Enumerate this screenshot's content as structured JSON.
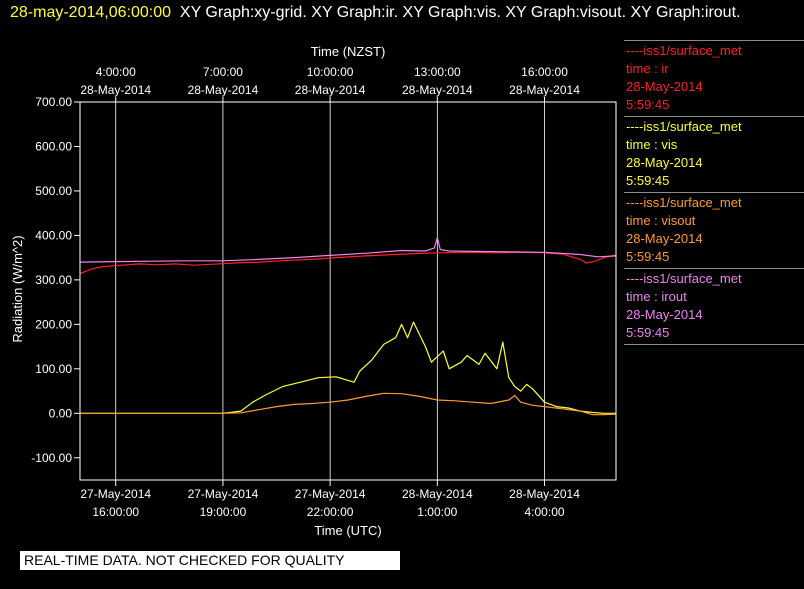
{
  "header": {
    "timestamp": "28-may-2014,06:00:00",
    "graphs": "XY Graph:xy-grid.  XY Graph:ir.  XY Graph:vis.  XY Graph:visout.  XY Graph:irout."
  },
  "legend": [
    {
      "name": "----iss1/surface_met",
      "field": "time : ir",
      "date": "28-May-2014",
      "time": "5:59:45",
      "color": "#ff2020"
    },
    {
      "name": "----iss1/surface_met",
      "field": "time : vis",
      "date": "28-May-2014",
      "time": "5:59:45",
      "color": "#ffff33"
    },
    {
      "name": "----iss1/surface_met",
      "field": "time : visout",
      "date": "28-May-2014",
      "time": "5:59:45",
      "color": "#ff9933"
    },
    {
      "name": "----iss1/surface_met",
      "field": "time : irout",
      "date": "28-May-2014",
      "time": "5:59:45",
      "color": "#ee82ee"
    }
  ],
  "disclaimer": "REAL-TIME DATA. NOT CHECKED FOR QUALITY",
  "chart_data": {
    "type": "line",
    "top_axis_title": "Time (NZST)",
    "xlabel": "Time (UTC)",
    "ylabel": "Radiation (W/m^2)",
    "xlim": [
      "2014-05-27 15:00",
      "2014-05-28 06:00"
    ],
    "ylim": [
      -150,
      700
    ],
    "grid": "vertical",
    "x_ticks": [
      {
        "utc": "2014-05-27 16:00",
        "bottom_date": "27-May-2014",
        "bottom_time": "16:00:00",
        "top_time": "4:00:00",
        "top_date": "28-May-2014"
      },
      {
        "utc": "2014-05-27 19:00",
        "bottom_date": "27-May-2014",
        "bottom_time": "19:00:00",
        "top_time": "7:00:00",
        "top_date": "28-May-2014"
      },
      {
        "utc": "2014-05-27 22:00",
        "bottom_date": "27-May-2014",
        "bottom_time": "22:00:00",
        "top_time": "10:00:00",
        "top_date": "28-May-2014"
      },
      {
        "utc": "2014-05-28 01:00",
        "bottom_date": "28-May-2014",
        "bottom_time": "1:00:00",
        "top_time": "13:00:00",
        "top_date": "28-May-2014"
      },
      {
        "utc": "2014-05-28 04:00",
        "bottom_date": "28-May-2014",
        "bottom_time": "4:00:00",
        "top_time": "16:00:00",
        "top_date": "28-May-2014"
      }
    ],
    "y_ticks": [
      {
        "value": -100,
        "label": "-100.00"
      },
      {
        "value": 0,
        "label": "0.00"
      },
      {
        "value": 100,
        "label": "100.00"
      },
      {
        "value": 200,
        "label": "200.00"
      },
      {
        "value": 300,
        "label": "300.00"
      },
      {
        "value": 400,
        "label": "400.00"
      },
      {
        "value": 500,
        "label": "500.00"
      },
      {
        "value": 600,
        "label": "600.00"
      },
      {
        "value": 700,
        "label": "700.00"
      }
    ],
    "series": [
      {
        "name": "ir",
        "color": "#ff2020",
        "x": [
          "2014-05-27 15:00",
          "2014-05-27 15:20",
          "2014-05-27 15:40",
          "2014-05-27 16:10",
          "2014-05-27 16:40",
          "2014-05-27 17:10",
          "2014-05-27 17:40",
          "2014-05-27 18:10",
          "2014-05-27 18:40",
          "2014-05-27 19:20",
          "2014-05-27 20:00",
          "2014-05-27 20:50",
          "2014-05-27 21:30",
          "2014-05-27 22:10",
          "2014-05-27 23:00",
          "2014-05-28 00:00",
          "2014-05-28 01:00",
          "2014-05-28 02:00",
          "2014-05-28 02:40",
          "2014-05-28 03:20",
          "2014-05-28 04:00",
          "2014-05-28 04:30",
          "2014-05-28 05:00",
          "2014-05-28 05:10",
          "2014-05-28 05:25",
          "2014-05-28 05:40",
          "2014-05-28 06:00"
        ],
        "y": [
          314,
          325,
          330,
          333,
          336,
          334,
          336,
          333,
          335,
          338,
          340,
          344,
          346,
          350,
          354,
          358,
          361,
          362,
          361,
          362,
          361,
          358,
          346,
          338,
          342,
          350,
          356
        ]
      },
      {
        "name": "vis",
        "color": "#ffff33",
        "x": [
          "2014-05-27 15:00",
          "2014-05-27 19:00",
          "2014-05-27 19:30",
          "2014-05-27 19:50",
          "2014-05-27 20:10",
          "2014-05-27 20:40",
          "2014-05-27 21:10",
          "2014-05-27 21:40",
          "2014-05-27 22:10",
          "2014-05-27 22:40",
          "2014-05-27 22:50",
          "2014-05-27 23:10",
          "2014-05-27 23:30",
          "2014-05-27 23:50",
          "2014-05-28 00:00",
          "2014-05-28 00:10",
          "2014-05-28 00:20",
          "2014-05-28 00:40",
          "2014-05-28 00:50",
          "2014-05-28 01:10",
          "2014-05-28 01:20",
          "2014-05-28 01:40",
          "2014-05-28 01:50",
          "2014-05-28 02:10",
          "2014-05-28 02:20",
          "2014-05-28 02:40",
          "2014-05-28 02:50",
          "2014-05-28 03:00",
          "2014-05-28 03:10",
          "2014-05-28 03:20",
          "2014-05-28 03:30",
          "2014-05-28 03:40",
          "2014-05-28 04:00",
          "2014-05-28 04:20",
          "2014-05-28 04:40",
          "2014-05-28 05:00",
          "2014-05-28 05:20",
          "2014-05-28 05:40",
          "2014-05-28 06:00"
        ],
        "y": [
          0,
          0,
          5,
          25,
          40,
          60,
          70,
          80,
          82,
          70,
          95,
          120,
          155,
          170,
          200,
          170,
          205,
          150,
          115,
          140,
          100,
          115,
          130,
          110,
          135,
          100,
          160,
          80,
          60,
          50,
          65,
          55,
          25,
          15,
          12,
          5,
          2,
          0,
          0
        ]
      },
      {
        "name": "visout",
        "color": "#ff9933",
        "x": [
          "2014-05-27 15:00",
          "2014-05-27 19:00",
          "2014-05-27 19:30",
          "2014-05-27 20:00",
          "2014-05-27 20:30",
          "2014-05-27 21:00",
          "2014-05-27 21:30",
          "2014-05-27 22:00",
          "2014-05-27 22:30",
          "2014-05-27 23:00",
          "2014-05-27 23:30",
          "2014-05-28 00:00",
          "2014-05-28 00:30",
          "2014-05-28 01:00",
          "2014-05-28 01:30",
          "2014-05-28 02:00",
          "2014-05-28 02:30",
          "2014-05-28 03:00",
          "2014-05-28 03:10",
          "2014-05-28 03:20",
          "2014-05-28 03:40",
          "2014-05-28 04:00",
          "2014-05-28 04:30",
          "2014-05-28 05:00",
          "2014-05-28 05:20",
          "2014-05-28 05:40",
          "2014-05-28 06:00"
        ],
        "y": [
          0,
          0,
          1,
          8,
          15,
          20,
          22,
          25,
          30,
          38,
          45,
          44,
          38,
          30,
          28,
          25,
          22,
          30,
          40,
          25,
          18,
          15,
          10,
          5,
          -3,
          -3,
          -2
        ]
      },
      {
        "name": "irout",
        "color": "#ee82ee",
        "x": [
          "2014-05-27 15:00",
          "2014-05-27 16:00",
          "2014-05-27 17:00",
          "2014-05-27 18:00",
          "2014-05-27 19:00",
          "2014-05-27 20:00",
          "2014-05-27 21:00",
          "2014-05-27 22:00",
          "2014-05-27 23:00",
          "2014-05-28 00:00",
          "2014-05-28 00:40",
          "2014-05-28 00:55",
          "2014-05-28 01:00",
          "2014-05-28 01:05",
          "2014-05-28 01:20",
          "2014-05-28 02:00",
          "2014-05-28 03:00",
          "2014-05-28 04:00",
          "2014-05-28 05:00",
          "2014-05-28 05:30",
          "2014-05-28 06:00"
        ],
        "y": [
          340,
          341,
          342,
          343,
          343,
          346,
          350,
          355,
          360,
          366,
          365,
          372,
          395,
          368,
          365,
          364,
          363,
          362,
          357,
          352,
          354
        ]
      }
    ]
  }
}
